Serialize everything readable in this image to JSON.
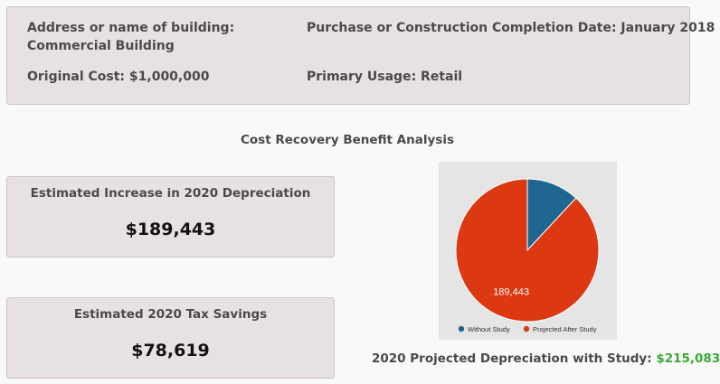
{
  "building": {
    "address_label": "Address or name of building:",
    "address_value": "Commercial Building",
    "purchase_text": "Purchase or Construction Completion Date: January 2018",
    "cost_text": "Original Cost: $1,000,000",
    "usage_text": "Primary Usage: Retail"
  },
  "analysis": {
    "title": "Cost Recovery Benefit Analysis"
  },
  "depreciation_card": {
    "label": "Estimated Increase in 2020 Depreciation",
    "value": "$189,443"
  },
  "tax_card": {
    "label": "Estimated 2020 Tax Savings",
    "value": "$78,619"
  },
  "projected": {
    "label": "2020 Projected Depreciation with Study:",
    "value": "$215,083"
  },
  "chart_data": {
    "type": "pie",
    "slices": [
      {
        "name": "Without Study",
        "value": 25640,
        "color": "#1f6690",
        "label": ""
      },
      {
        "name": "Projected After Study",
        "value": 189443,
        "color": "#dc3912",
        "label": "189,443"
      }
    ],
    "legend_position": "bottom"
  }
}
